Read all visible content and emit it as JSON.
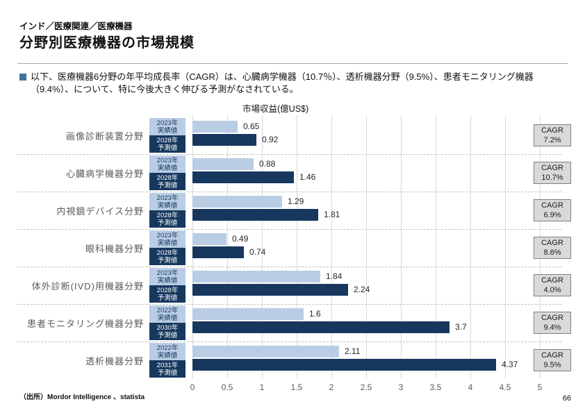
{
  "header": {
    "eyebrow": "インド／医療関連／医療機器",
    "title": "分野別医療機器の市場規模"
  },
  "body": {
    "line1": "以下、医療機器6分野の年平均成長率（CAGR）は、心臓病学機器（10.7％）、透析機器分野（9.5%）、患者モニタリング機器",
    "line2": "（9.4%）、について、特に今後大きく伸びる予測がなされている。"
  },
  "footer": {
    "source": "（出所）Mordor Intelligence 、statista",
    "page_number": "66"
  },
  "chart_data": {
    "type": "bar",
    "orientation": "horizontal",
    "title": "市場収益(億US$)",
    "xlim": [
      0,
      5
    ],
    "x_ticks": [
      "0",
      "0.5",
      "1",
      "1.5",
      "2",
      "2.5",
      "3",
      "3.5",
      "4",
      "4.5",
      "5"
    ],
    "grid": true,
    "cagr_label": "CAGR",
    "colors": {
      "actual": "#b9cde4",
      "forecast": "#17375e",
      "cagr_box": "#d9d9d9"
    },
    "series_legend": {
      "actual": "実績値",
      "forecast": "予測値"
    },
    "rows": [
      {
        "category": "画像診断装置分野",
        "actual_year": "2023年",
        "actual_kind": "実績値",
        "forecast_year": "2028年",
        "forecast_kind": "予測値",
        "actual": "0.65",
        "forecast": "0.92",
        "cagr": "7.2%"
      },
      {
        "category": "心臓病学機器分野",
        "actual_year": "2023年",
        "actual_kind": "実績値",
        "forecast_year": "2028年",
        "forecast_kind": "予測値",
        "actual": "0.88",
        "forecast": "1.46",
        "cagr": "10.7%"
      },
      {
        "category": "内視鏡デバイス分野",
        "actual_year": "2023年",
        "actual_kind": "実績値",
        "forecast_year": "2028年",
        "forecast_kind": "予測値",
        "actual": "1.29",
        "forecast": "1.81",
        "cagr": "6.9%"
      },
      {
        "category": "眼科機器分野",
        "actual_year": "2023年",
        "actual_kind": "実績値",
        "forecast_year": "2028年",
        "forecast_kind": "予測値",
        "actual": "0.49",
        "forecast": "0.74",
        "cagr": "8.6%"
      },
      {
        "category": "体外診断(IVD)用機器分野",
        "actual_year": "2023年",
        "actual_kind": "実績値",
        "forecast_year": "2028年",
        "forecast_kind": "予測値",
        "actual": "1.84",
        "forecast": "2.24",
        "cagr": "4.0%"
      },
      {
        "category": "患者モニタリング機器分野",
        "actual_year": "2022年",
        "actual_kind": "実績値",
        "forecast_year": "2030年",
        "forecast_kind": "予測値",
        "actual": "1.6",
        "forecast": "3.7",
        "cagr": "9.4%"
      },
      {
        "category": "透析機器分野",
        "actual_year": "2022年",
        "actual_kind": "実績値",
        "forecast_year": "2031年",
        "forecast_kind": "予測値",
        "actual": "2.11",
        "forecast": "4.37",
        "cagr": "9.5%"
      }
    ]
  }
}
